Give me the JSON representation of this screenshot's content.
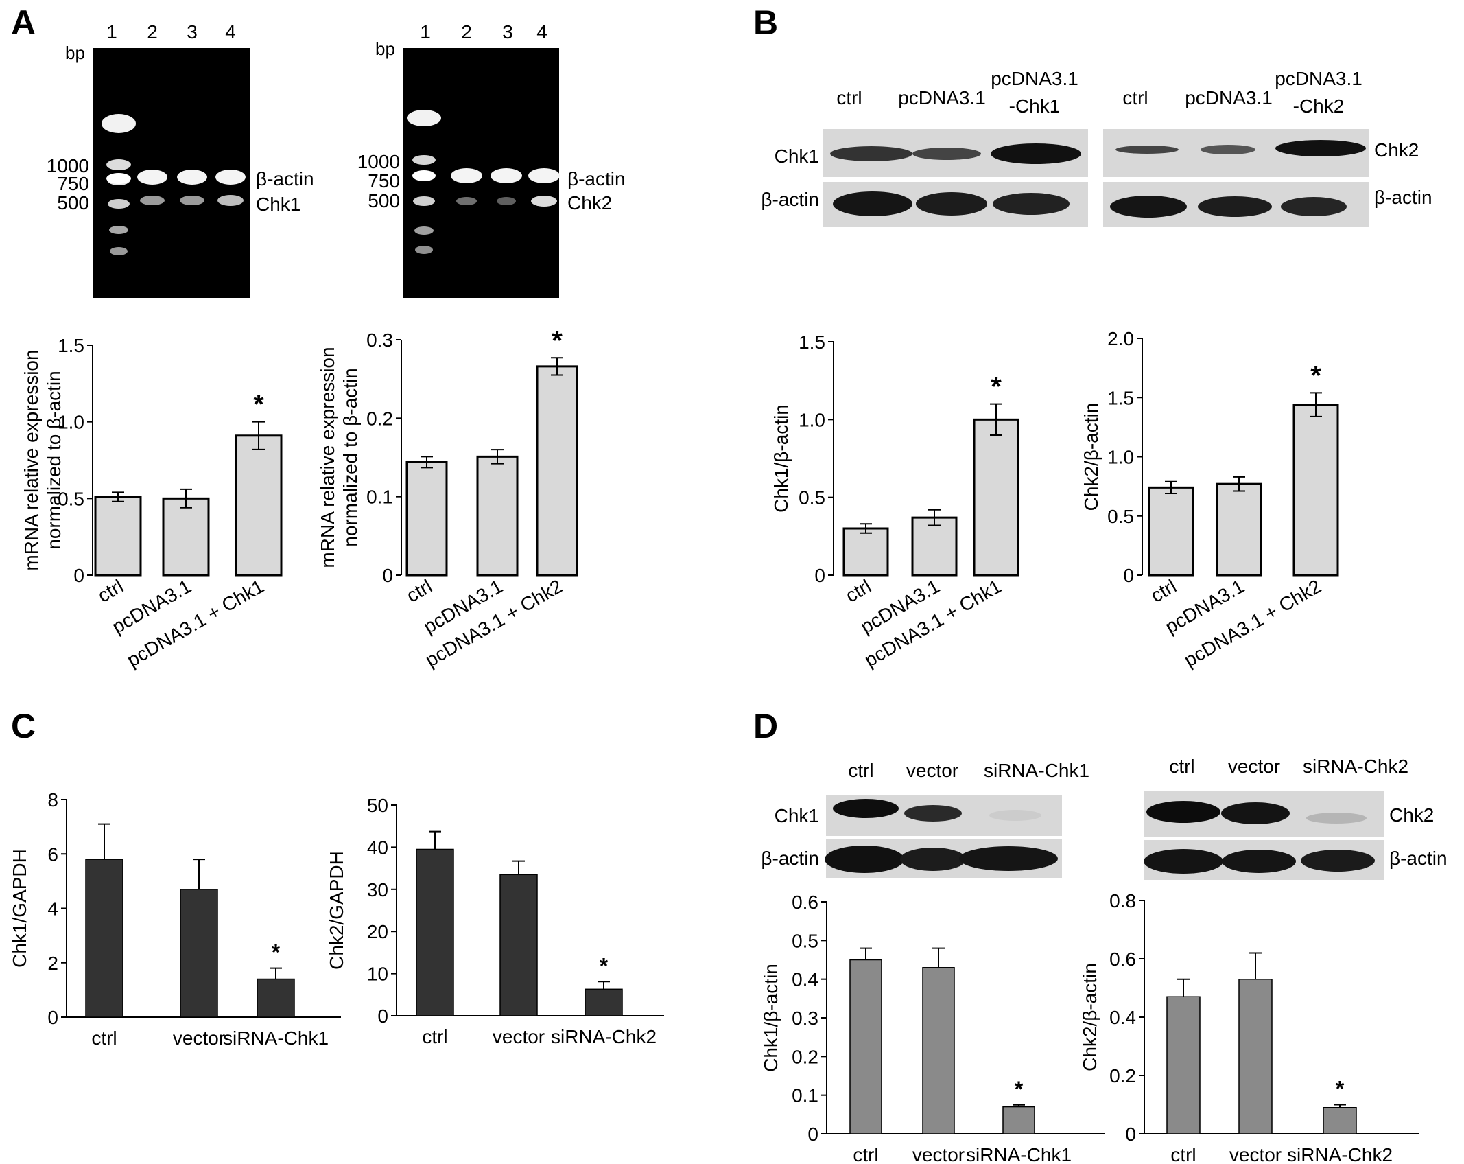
{
  "panels": {
    "A": {
      "letter": "A",
      "gels": [
        {
          "lanes": [
            "1",
            "2",
            "3",
            "4"
          ],
          "bp_label": "bp",
          "markers": [
            "1000",
            "750",
            "500"
          ],
          "band_labels": [
            "β-actin",
            "Chk1"
          ]
        },
        {
          "lanes": [
            "1",
            "2",
            "3",
            "4"
          ],
          "bp_label": "bp",
          "markers": [
            "1000",
            "750",
            "500"
          ],
          "band_labels": [
            "β-actin",
            "Chk2"
          ]
        }
      ]
    },
    "B": {
      "letter": "B",
      "blots": [
        {
          "lanes": [
            "ctrl",
            "pcDNA3.1",
            "pcDNA3.1",
            "-Chk1"
          ],
          "rows": [
            "Chk1",
            "β-actin"
          ]
        },
        {
          "lanes": [
            "ctrl",
            "pcDNA3.1",
            "pcDNA3.1",
            "-Chk2"
          ],
          "rows": [
            "Chk2",
            "β-actin"
          ]
        }
      ]
    },
    "C": {
      "letter": "C"
    },
    "D": {
      "letter": "D",
      "blots": [
        {
          "lanes": [
            "ctrl",
            "vector",
            "siRNA-Chk1"
          ],
          "rows": [
            "Chk1",
            "β-actin"
          ]
        },
        {
          "lanes": [
            "ctrl",
            "vector",
            "siRNA-Chk2"
          ],
          "rows": [
            "Chk2",
            "β-actin"
          ]
        }
      ]
    }
  },
  "chart_data": [
    {
      "id": "A1",
      "type": "bar",
      "categories": [
        "ctrl",
        "pcDNA3.1",
        "pcDNA3.1 + Chk1"
      ],
      "values": [
        0.51,
        0.5,
        0.91
      ],
      "errors": [
        0.03,
        0.06,
        0.09
      ],
      "significance": [
        "",
        "",
        "*"
      ],
      "ylabel": [
        "mRNA relative expression",
        "normalized to β-actin"
      ],
      "ylim": [
        0,
        1.5
      ],
      "yticks": [
        "0",
        "0.5",
        "1.0",
        "1.5"
      ],
      "bar_color": "#d9d9d9"
    },
    {
      "id": "A2",
      "type": "bar",
      "categories": [
        "ctrl",
        "pcDNA3.1",
        "pcDNA3.1 + Chk2"
      ],
      "values": [
        0.144,
        0.151,
        0.266
      ],
      "errors": [
        0.007,
        0.009,
        0.011
      ],
      "significance": [
        "",
        "",
        "*"
      ],
      "ylabel": [
        "mRNA relative expression",
        "normalized to β-actin"
      ],
      "ylim": [
        0,
        0.3
      ],
      "yticks": [
        "0",
        "0.1",
        "0.2",
        "0.3"
      ],
      "bar_color": "#d9d9d9"
    },
    {
      "id": "B1",
      "type": "bar",
      "categories": [
        "ctrl",
        "pcDNA3.1",
        "pcDNA3.1 + Chk1"
      ],
      "values": [
        0.3,
        0.37,
        1.0
      ],
      "errors": [
        0.03,
        0.05,
        0.1
      ],
      "significance": [
        "",
        "",
        "*"
      ],
      "ylabel": [
        "Chk1/β-actin"
      ],
      "ylim": [
        0,
        1.5
      ],
      "yticks": [
        "0",
        "0.5",
        "1.0",
        "1.5"
      ],
      "bar_color": "#d9d9d9"
    },
    {
      "id": "B2",
      "type": "bar",
      "categories": [
        "ctrl",
        "pcDNA3.1",
        "pcDNA3.1 + Chk2"
      ],
      "values": [
        0.74,
        0.77,
        1.44
      ],
      "errors": [
        0.05,
        0.06,
        0.1
      ],
      "significance": [
        "",
        "",
        "*"
      ],
      "ylabel": [
        "Chk2/β-actin"
      ],
      "ylim": [
        0,
        2.0
      ],
      "yticks": [
        "0",
        "0.5",
        "1.0",
        "1.5",
        "2.0"
      ],
      "bar_color": "#d9d9d9"
    },
    {
      "id": "C1",
      "type": "bar",
      "categories": [
        "ctrl",
        "vector",
        "siRNA-Chk1"
      ],
      "values": [
        5.8,
        4.7,
        1.4
      ],
      "errors": [
        1.3,
        1.1,
        0.4
      ],
      "significance": [
        "",
        "",
        "*"
      ],
      "ylabel": [
        "Chk1/GAPDH"
      ],
      "ylim": [
        0,
        8
      ],
      "yticks": [
        "0",
        "2",
        "4",
        "6",
        "8"
      ],
      "bar_color": "#333333"
    },
    {
      "id": "C2",
      "type": "bar",
      "categories": [
        "ctrl",
        "vector",
        "siRNA-Chk2"
      ],
      "values": [
        39.5,
        33.5,
        6.3
      ],
      "errors": [
        4.2,
        3.2,
        1.8
      ],
      "significance": [
        "",
        "",
        "*"
      ],
      "ylabel": [
        "Chk2/GAPDH"
      ],
      "ylim": [
        0,
        50
      ],
      "yticks": [
        "0",
        "10",
        "20",
        "30",
        "40",
        "50"
      ],
      "bar_color": "#333333"
    },
    {
      "id": "D1",
      "type": "bar",
      "categories": [
        "ctrl",
        "vector",
        "siRNA-Chk1"
      ],
      "values": [
        0.45,
        0.43,
        0.07
      ],
      "errors": [
        0.03,
        0.05,
        0.005
      ],
      "significance": [
        "",
        "",
        "*"
      ],
      "ylabel": [
        "Chk1/β-actin"
      ],
      "ylim": [
        0,
        0.6
      ],
      "yticks": [
        "0",
        "0.1",
        "0.2",
        "0.3",
        "0.4",
        "0.5",
        "0.6"
      ],
      "bar_color": "#8a8a8a"
    },
    {
      "id": "D2",
      "type": "bar",
      "categories": [
        "ctrl",
        "vector",
        "siRNA-Chk2"
      ],
      "values": [
        0.47,
        0.53,
        0.09
      ],
      "errors": [
        0.06,
        0.09,
        0.01
      ],
      "significance": [
        "",
        "",
        "*"
      ],
      "ylabel": [
        "Chk2/β-actin"
      ],
      "ylim": [
        0,
        0.8
      ],
      "yticks": [
        "0",
        "0.2",
        "0.4",
        "0.6",
        "0.8"
      ],
      "bar_color": "#8a8a8a"
    }
  ]
}
